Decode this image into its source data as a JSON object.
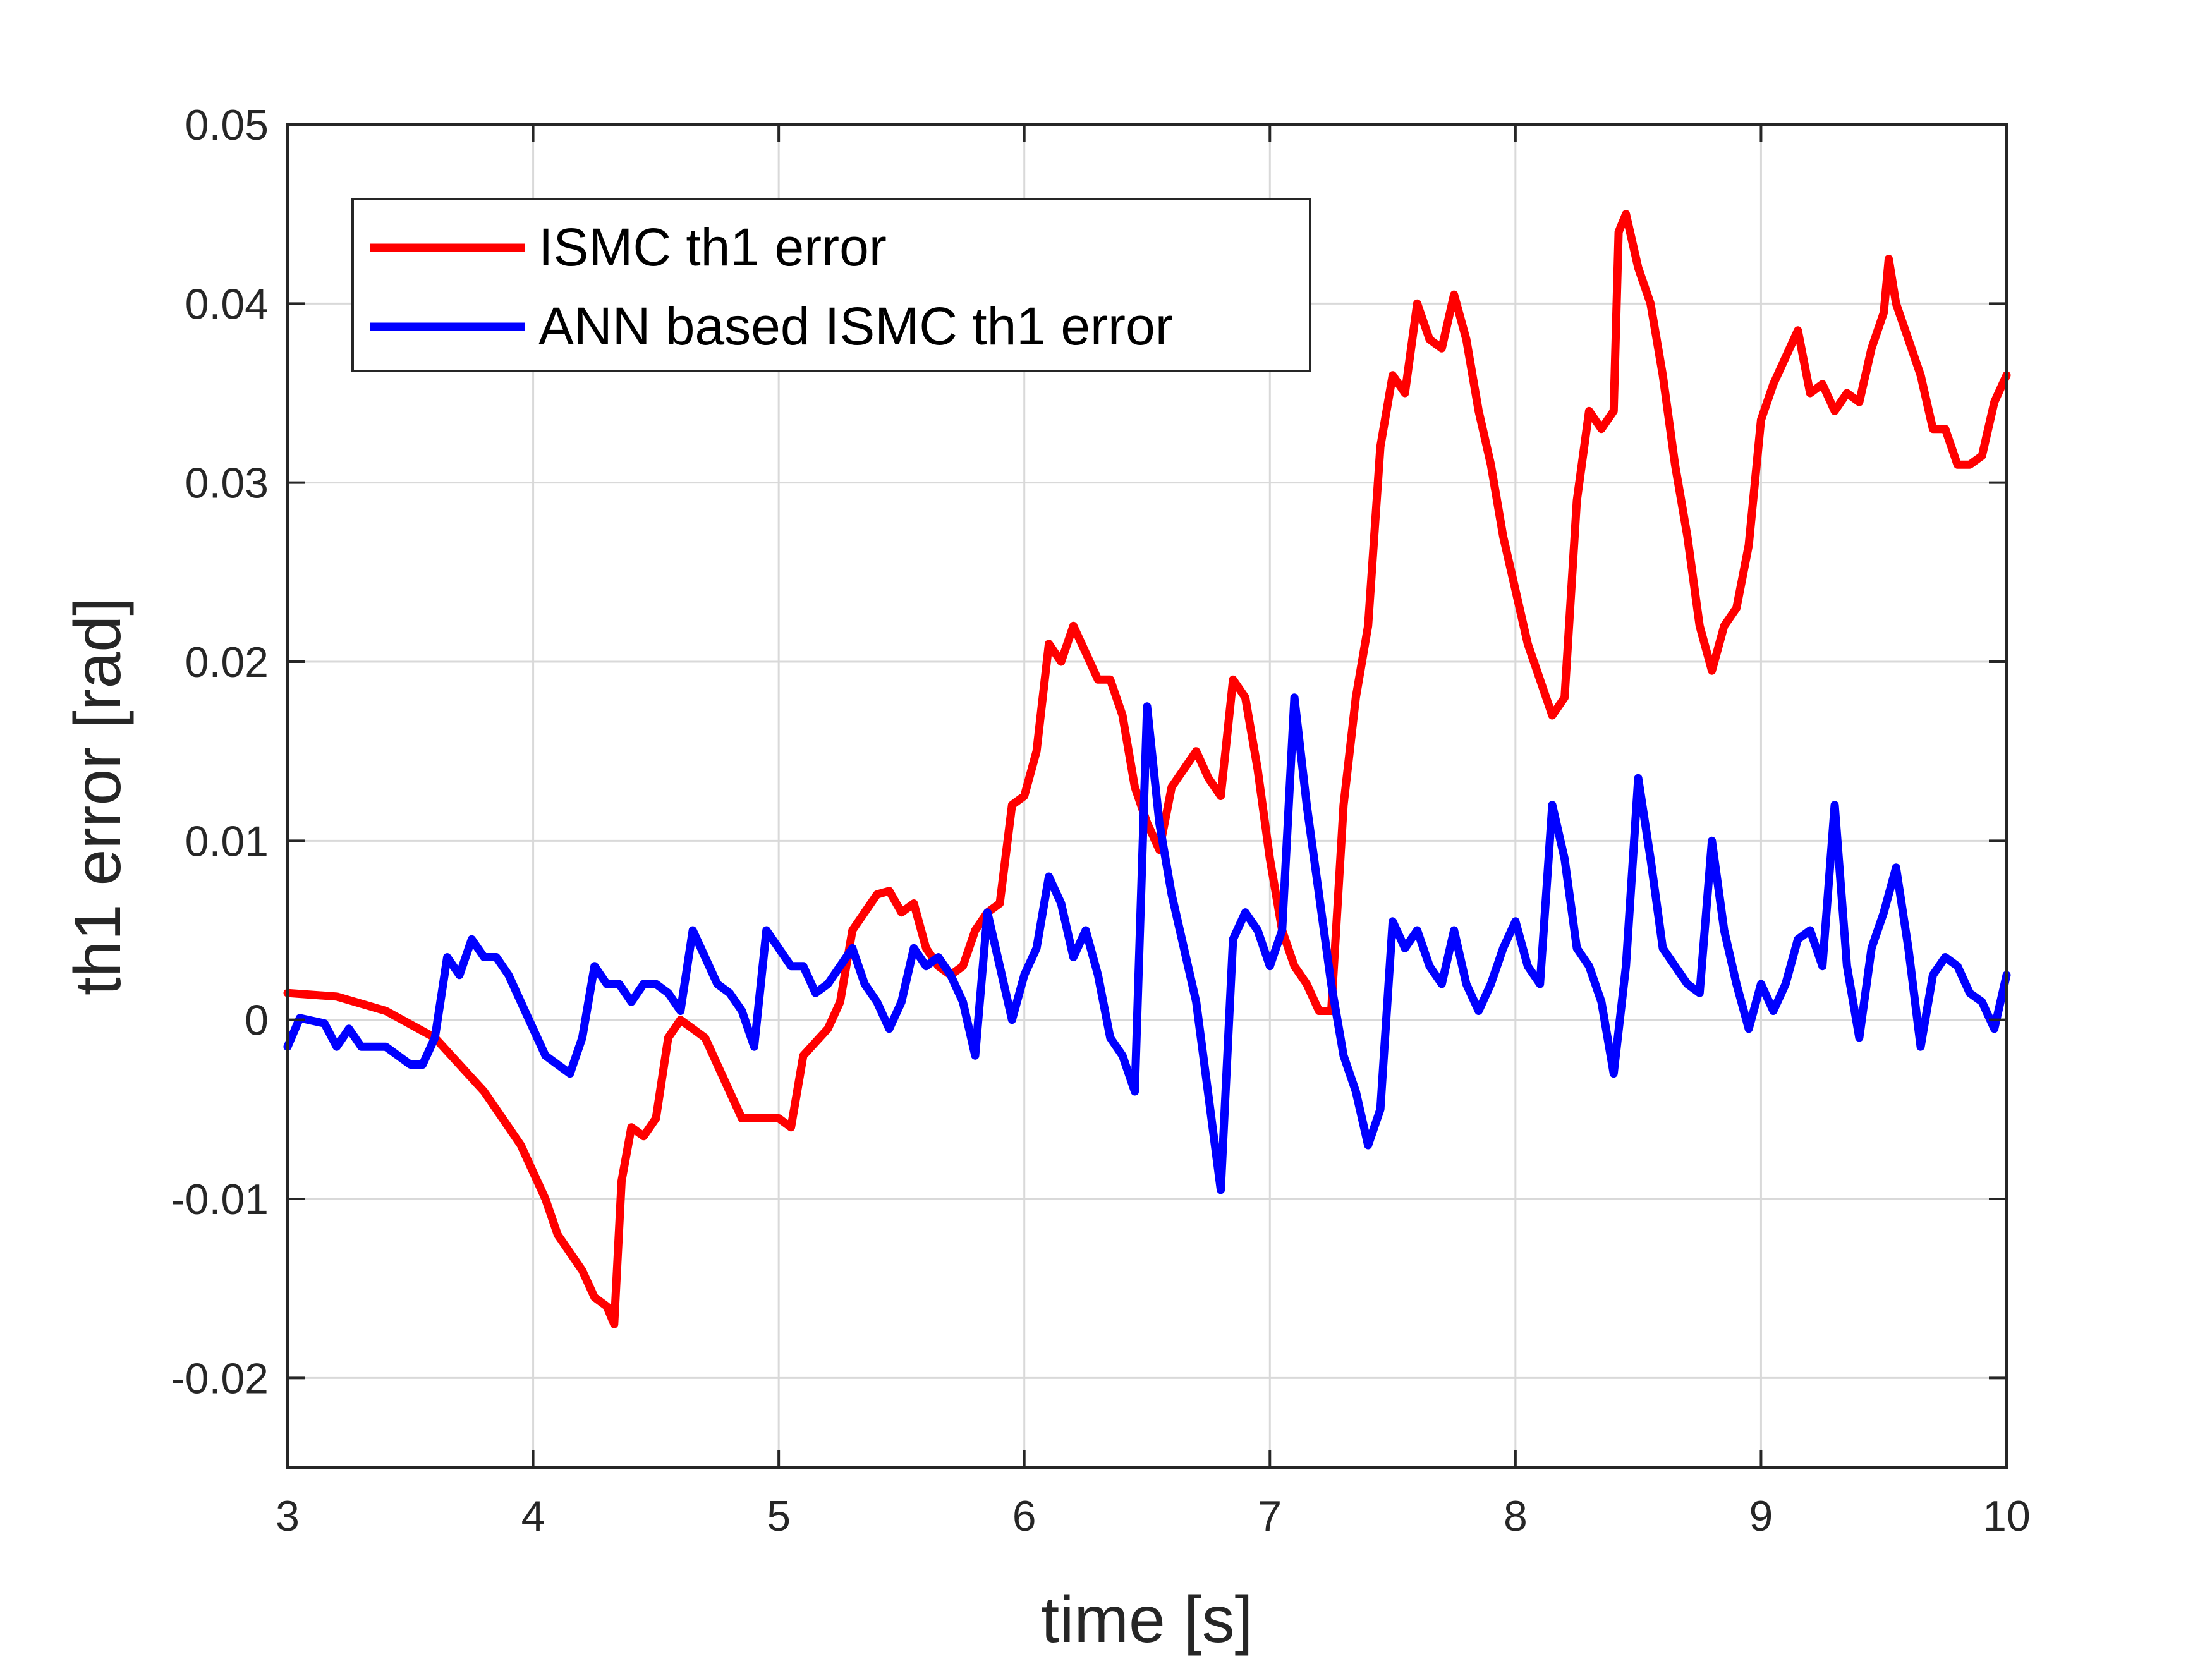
{
  "chart_data": {
    "type": "line",
    "title": "",
    "xlabel": "time [s]",
    "ylabel": "th1 error [rad]",
    "xlim": [
      3,
      10
    ],
    "ylim": [
      -0.025,
      0.05
    ],
    "xticks": [
      3,
      4,
      5,
      6,
      7,
      8,
      9,
      10
    ],
    "xtick_labels": [
      "3",
      "4",
      "5",
      "6",
      "7",
      "8",
      "9",
      "10"
    ],
    "yticks": [
      -0.02,
      -0.01,
      0,
      0.01,
      0.02,
      0.03,
      0.04,
      0.05
    ],
    "ytick_labels": [
      "-0.02",
      "-0.01",
      "0",
      "0.01",
      "0.02",
      "0.03",
      "0.04",
      "0.05"
    ],
    "grid": true,
    "legend_position": "top-left",
    "series": [
      {
        "name": "ISMC th1 error",
        "color": "#ff0000",
        "points": [
          [
            3.0,
            0.0015
          ],
          [
            3.2,
            0.0013
          ],
          [
            3.4,
            0.0005
          ],
          [
            3.6,
            -0.001
          ],
          [
            3.8,
            -0.004
          ],
          [
            3.95,
            -0.007
          ],
          [
            4.05,
            -0.01
          ],
          [
            4.1,
            -0.012
          ],
          [
            4.15,
            -0.013
          ],
          [
            4.2,
            -0.014
          ],
          [
            4.25,
            -0.0155
          ],
          [
            4.3,
            -0.016
          ],
          [
            4.33,
            -0.017
          ],
          [
            4.36,
            -0.009
          ],
          [
            4.4,
            -0.006
          ],
          [
            4.45,
            -0.0065
          ],
          [
            4.5,
            -0.0055
          ],
          [
            4.55,
            -0.001
          ],
          [
            4.6,
            0.0
          ],
          [
            4.65,
            -0.0005
          ],
          [
            4.7,
            -0.001
          ],
          [
            4.75,
            -0.0025
          ],
          [
            4.8,
            -0.004
          ],
          [
            4.85,
            -0.0055
          ],
          [
            4.9,
            -0.0055
          ],
          [
            5.0,
            -0.0055
          ],
          [
            5.05,
            -0.006
          ],
          [
            5.1,
            -0.002
          ],
          [
            5.2,
            -0.0005
          ],
          [
            5.25,
            0.001
          ],
          [
            5.3,
            0.005
          ],
          [
            5.35,
            0.006
          ],
          [
            5.4,
            0.007
          ],
          [
            5.45,
            0.0072
          ],
          [
            5.5,
            0.006
          ],
          [
            5.55,
            0.0065
          ],
          [
            5.6,
            0.004
          ],
          [
            5.65,
            0.003
          ],
          [
            5.7,
            0.0025
          ],
          [
            5.75,
            0.003
          ],
          [
            5.8,
            0.005
          ],
          [
            5.85,
            0.006
          ],
          [
            5.9,
            0.0065
          ],
          [
            5.95,
            0.012
          ],
          [
            6.0,
            0.0125
          ],
          [
            6.05,
            0.015
          ],
          [
            6.1,
            0.021
          ],
          [
            6.15,
            0.02
          ],
          [
            6.2,
            0.022
          ],
          [
            6.25,
            0.0205
          ],
          [
            6.3,
            0.019
          ],
          [
            6.35,
            0.019
          ],
          [
            6.4,
            0.017
          ],
          [
            6.45,
            0.013
          ],
          [
            6.5,
            0.011
          ],
          [
            6.55,
            0.0095
          ],
          [
            6.6,
            0.013
          ],
          [
            6.65,
            0.014
          ],
          [
            6.7,
            0.015
          ],
          [
            6.75,
            0.0135
          ],
          [
            6.8,
            0.0125
          ],
          [
            6.85,
            0.019
          ],
          [
            6.9,
            0.018
          ],
          [
            6.95,
            0.014
          ],
          [
            7.0,
            0.009
          ],
          [
            7.05,
            0.005
          ],
          [
            7.1,
            0.003
          ],
          [
            7.15,
            0.002
          ],
          [
            7.2,
            0.0005
          ],
          [
            7.25,
            0.0005
          ],
          [
            7.3,
            0.012
          ],
          [
            7.35,
            0.018
          ],
          [
            7.4,
            0.022
          ],
          [
            7.45,
            0.032
          ],
          [
            7.5,
            0.036
          ],
          [
            7.55,
            0.035
          ],
          [
            7.6,
            0.04
          ],
          [
            7.65,
            0.038
          ],
          [
            7.7,
            0.0375
          ],
          [
            7.75,
            0.0405
          ],
          [
            7.8,
            0.038
          ],
          [
            7.85,
            0.034
          ],
          [
            7.9,
            0.031
          ],
          [
            7.95,
            0.027
          ],
          [
            8.0,
            0.024
          ],
          [
            8.05,
            0.021
          ],
          [
            8.1,
            0.019
          ],
          [
            8.15,
            0.017
          ],
          [
            8.2,
            0.018
          ],
          [
            8.25,
            0.029
          ],
          [
            8.3,
            0.034
          ],
          [
            8.35,
            0.033
          ],
          [
            8.4,
            0.034
          ],
          [
            8.42,
            0.044
          ],
          [
            8.45,
            0.045
          ],
          [
            8.5,
            0.042
          ],
          [
            8.55,
            0.04
          ],
          [
            8.6,
            0.036
          ],
          [
            8.65,
            0.031
          ],
          [
            8.7,
            0.027
          ],
          [
            8.75,
            0.022
          ],
          [
            8.8,
            0.0195
          ],
          [
            8.85,
            0.022
          ],
          [
            8.9,
            0.023
          ],
          [
            8.95,
            0.0265
          ],
          [
            9.0,
            0.0335
          ],
          [
            9.05,
            0.0355
          ],
          [
            9.1,
            0.037
          ],
          [
            9.15,
            0.0385
          ],
          [
            9.2,
            0.035
          ],
          [
            9.25,
            0.0355
          ],
          [
            9.3,
            0.034
          ],
          [
            9.35,
            0.035
          ],
          [
            9.4,
            0.0345
          ],
          [
            9.45,
            0.0375
          ],
          [
            9.5,
            0.0395
          ],
          [
            9.52,
            0.0425
          ],
          [
            9.55,
            0.04
          ],
          [
            9.6,
            0.038
          ],
          [
            9.65,
            0.036
          ],
          [
            9.7,
            0.033
          ],
          [
            9.75,
            0.033
          ],
          [
            9.8,
            0.031
          ],
          [
            9.85,
            0.031
          ],
          [
            9.9,
            0.0315
          ],
          [
            9.95,
            0.0345
          ],
          [
            10.0,
            0.036
          ]
        ]
      },
      {
        "name": "ANN based ISMC th1 error",
        "color": "#0000ff",
        "points": [
          [
            3.0,
            -0.0015
          ],
          [
            3.05,
            0.0001
          ],
          [
            3.15,
            -0.0002
          ],
          [
            3.2,
            -0.0015
          ],
          [
            3.25,
            -0.0005
          ],
          [
            3.3,
            -0.0015
          ],
          [
            3.4,
            -0.0015
          ],
          [
            3.5,
            -0.0025
          ],
          [
            3.55,
            -0.0025
          ],
          [
            3.6,
            -0.001
          ],
          [
            3.65,
            0.0035
          ],
          [
            3.7,
            0.0025
          ],
          [
            3.75,
            0.0045
          ],
          [
            3.8,
            0.0035
          ],
          [
            3.85,
            0.0035
          ],
          [
            3.9,
            0.0025
          ],
          [
            3.95,
            0.001
          ],
          [
            4.0,
            -0.0005
          ],
          [
            4.05,
            -0.002
          ],
          [
            4.1,
            -0.0025
          ],
          [
            4.15,
            -0.003
          ],
          [
            4.2,
            -0.001
          ],
          [
            4.25,
            0.003
          ],
          [
            4.3,
            0.002
          ],
          [
            4.35,
            0.002
          ],
          [
            4.4,
            0.001
          ],
          [
            4.45,
            0.002
          ],
          [
            4.5,
            0.002
          ],
          [
            4.55,
            0.0015
          ],
          [
            4.6,
            0.0005
          ],
          [
            4.65,
            0.005
          ],
          [
            4.7,
            0.0035
          ],
          [
            4.75,
            0.002
          ],
          [
            4.8,
            0.0015
          ],
          [
            4.85,
            0.0005
          ],
          [
            4.9,
            -0.0015
          ],
          [
            4.95,
            0.005
          ],
          [
            5.0,
            0.004
          ],
          [
            5.05,
            0.003
          ],
          [
            5.1,
            0.003
          ],
          [
            5.15,
            0.0015
          ],
          [
            5.2,
            0.002
          ],
          [
            5.25,
            0.003
          ],
          [
            5.3,
            0.004
          ],
          [
            5.35,
            0.002
          ],
          [
            5.4,
            0.001
          ],
          [
            5.45,
            -0.0005
          ],
          [
            5.5,
            0.001
          ],
          [
            5.55,
            0.004
          ],
          [
            5.6,
            0.003
          ],
          [
            5.65,
            0.0035
          ],
          [
            5.7,
            0.0025
          ],
          [
            5.75,
            0.001
          ],
          [
            5.8,
            -0.002
          ],
          [
            5.85,
            0.006
          ],
          [
            5.9,
            0.003
          ],
          [
            5.95,
            0.0
          ],
          [
            6.0,
            0.0025
          ],
          [
            6.05,
            0.004
          ],
          [
            6.1,
            0.008
          ],
          [
            6.15,
            0.0065
          ],
          [
            6.2,
            0.0035
          ],
          [
            6.25,
            0.005
          ],
          [
            6.3,
            0.0025
          ],
          [
            6.35,
            -0.001
          ],
          [
            6.4,
            -0.002
          ],
          [
            6.45,
            -0.004
          ],
          [
            6.5,
            0.0175
          ],
          [
            6.55,
            0.011
          ],
          [
            6.6,
            0.007
          ],
          [
            6.7,
            0.001
          ],
          [
            6.8,
            -0.0095
          ],
          [
            6.85,
            0.0045
          ],
          [
            6.9,
            0.006
          ],
          [
            6.95,
            0.005
          ],
          [
            7.0,
            0.003
          ],
          [
            7.05,
            0.005
          ],
          [
            7.1,
            0.018
          ],
          [
            7.15,
            0.012
          ],
          [
            7.2,
            0.007
          ],
          [
            7.25,
            0.002
          ],
          [
            7.3,
            -0.002
          ],
          [
            7.35,
            -0.004
          ],
          [
            7.4,
            -0.007
          ],
          [
            7.45,
            -0.005
          ],
          [
            7.5,
            0.0055
          ],
          [
            7.55,
            0.004
          ],
          [
            7.6,
            0.005
          ],
          [
            7.65,
            0.003
          ],
          [
            7.7,
            0.002
          ],
          [
            7.75,
            0.005
          ],
          [
            7.8,
            0.002
          ],
          [
            7.85,
            0.0005
          ],
          [
            7.9,
            0.002
          ],
          [
            7.95,
            0.004
          ],
          [
            8.0,
            0.0055
          ],
          [
            8.05,
            0.003
          ],
          [
            8.1,
            0.002
          ],
          [
            8.15,
            0.012
          ],
          [
            8.2,
            0.009
          ],
          [
            8.25,
            0.004
          ],
          [
            8.3,
            0.003
          ],
          [
            8.35,
            0.001
          ],
          [
            8.4,
            -0.003
          ],
          [
            8.45,
            0.003
          ],
          [
            8.5,
            0.0135
          ],
          [
            8.55,
            0.009
          ],
          [
            8.6,
            0.004
          ],
          [
            8.65,
            0.003
          ],
          [
            8.7,
            0.002
          ],
          [
            8.75,
            0.0015
          ],
          [
            8.8,
            0.01
          ],
          [
            8.85,
            0.005
          ],
          [
            8.9,
            0.002
          ],
          [
            8.95,
            -0.0005
          ],
          [
            9.0,
            0.002
          ],
          [
            9.05,
            0.0005
          ],
          [
            9.1,
            0.002
          ],
          [
            9.15,
            0.0045
          ],
          [
            9.2,
            0.005
          ],
          [
            9.25,
            0.003
          ],
          [
            9.3,
            0.012
          ],
          [
            9.35,
            0.003
          ],
          [
            9.4,
            -0.001
          ],
          [
            9.45,
            0.004
          ],
          [
            9.5,
            0.006
          ],
          [
            9.55,
            0.0085
          ],
          [
            9.6,
            0.004
          ],
          [
            9.65,
            -0.0015
          ],
          [
            9.7,
            0.0025
          ],
          [
            9.75,
            0.0035
          ],
          [
            9.8,
            0.003
          ],
          [
            9.85,
            0.0015
          ],
          [
            9.9,
            0.001
          ],
          [
            9.95,
            -0.0005
          ],
          [
            10.0,
            0.0025
          ]
        ]
      }
    ]
  }
}
